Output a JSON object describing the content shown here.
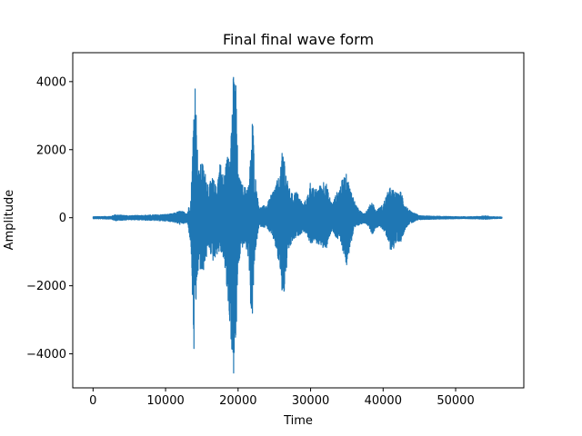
{
  "chart_data": {
    "type": "line",
    "title": "Final final wave form",
    "xlabel": "Time",
    "ylabel": "Amplitude",
    "xlim": [
      -2800,
      59400
    ],
    "ylim": [
      -5000,
      4850
    ],
    "xticks": [
      0,
      10000,
      20000,
      30000,
      40000,
      50000
    ],
    "xtick_labels": [
      "0",
      "10000",
      "20000",
      "30000",
      "40000",
      "50000"
    ],
    "yticks": [
      -4000,
      -2000,
      0,
      2000,
      4000
    ],
    "ytick_labels": [
      "−4000",
      "−2000",
      "0",
      "2000",
      "4000"
    ],
    "grid": false,
    "series": [
      {
        "color": "#1f77b4",
        "envelope_x": [
          0,
          2500,
          3000,
          5000,
          8000,
          10000,
          11000,
          12000,
          13000,
          13500,
          13900,
          14100,
          14300,
          14600,
          15000,
          15500,
          16000,
          16500,
          17000,
          17500,
          18000,
          18500,
          19000,
          19300,
          19700,
          20000,
          20500,
          21000,
          21500,
          21800,
          22000,
          22300,
          22700,
          23000,
          24000,
          25000,
          25800,
          26200,
          26700,
          27000,
          27500,
          28000,
          28500,
          29000,
          29500,
          30000,
          30500,
          31000,
          31500,
          32000,
          32500,
          33000,
          33500,
          34000,
          34500,
          35000,
          35400,
          35800,
          36200,
          36800,
          37500,
          38000,
          38500,
          39000,
          39500,
          40000,
          40500,
          41000,
          41500,
          42000,
          42500,
          43000,
          43500,
          44000,
          44500,
          45000,
          46000,
          48000,
          50000,
          52000,
          53500,
          54000,
          55000,
          56400
        ],
        "upper": [
          30,
          40,
          90,
          60,
          80,
          100,
          120,
          200,
          150,
          600,
          3300,
          4480,
          2400,
          1400,
          1700,
          1300,
          1000,
          1200,
          900,
          1700,
          1200,
          1800,
          2500,
          4200,
          4100,
          1300,
          1000,
          900,
          1000,
          2200,
          3100,
          1400,
          600,
          300,
          400,
          900,
          1300,
          2200,
          1200,
          900,
          700,
          800,
          600,
          400,
          600,
          1100,
          800,
          900,
          1000,
          1200,
          700,
          400,
          700,
          900,
          1200,
          1300,
          900,
          700,
          400,
          200,
          150,
          300,
          500,
          200,
          300,
          400,
          700,
          900,
          800,
          700,
          800,
          400,
          250,
          150,
          120,
          60,
          50,
          40,
          30,
          30,
          40,
          60,
          30,
          20
        ],
        "lower": [
          -30,
          -40,
          -90,
          -60,
          -80,
          -100,
          -120,
          -200,
          -150,
          -800,
          -4100,
          -3500,
          -2000,
          -1400,
          -1800,
          -1300,
          -900,
          -1300,
          -1100,
          -1000,
          -1200,
          -2300,
          -3500,
          -4900,
          -3900,
          -1500,
          -900,
          -800,
          -1300,
          -3000,
          -2900,
          -1200,
          -500,
          -250,
          -300,
          -700,
          -1600,
          -2600,
          -1500,
          -1000,
          -700,
          -600,
          -500,
          -400,
          -500,
          -800,
          -700,
          -800,
          -800,
          -1100,
          -600,
          -400,
          -600,
          -700,
          -1000,
          -1500,
          -900,
          -600,
          -300,
          -200,
          -150,
          -250,
          -500,
          -300,
          -250,
          -350,
          -600,
          -950,
          -900,
          -700,
          -700,
          -350,
          -200,
          -150,
          -100,
          -60,
          -50,
          -40,
          -30,
          -30,
          -40,
          -50,
          -30,
          -20
        ]
      }
    ]
  }
}
